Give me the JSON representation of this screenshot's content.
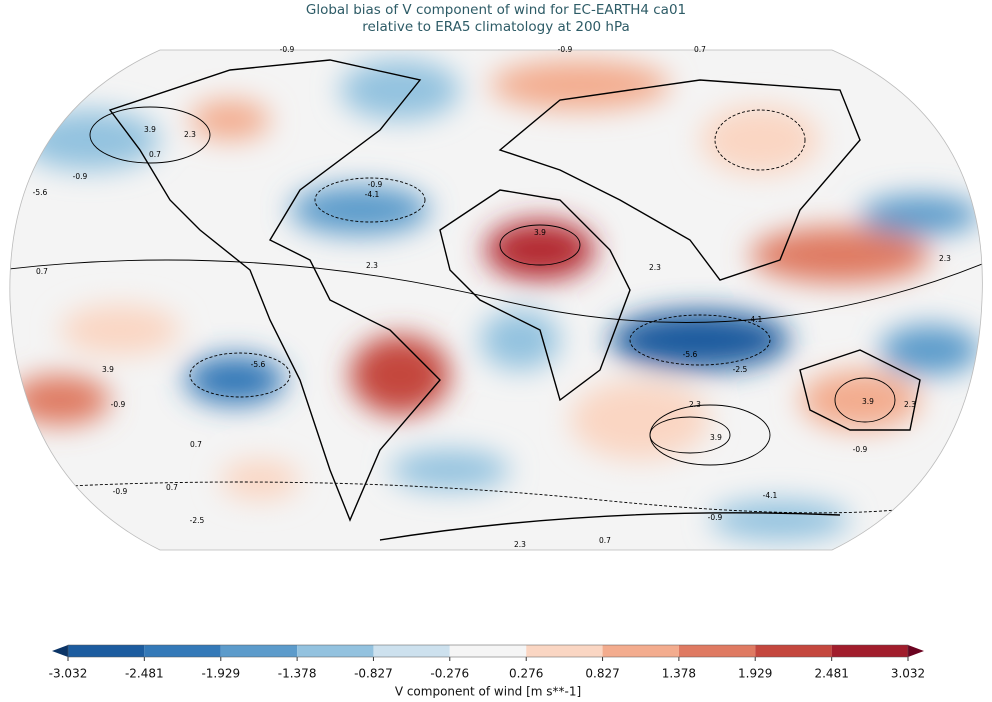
{
  "title": [
    "Global bias of V component of wind for EC-EARTH4 ca01",
    "relative to ERA5 climatology at 200 hPa"
  ],
  "colorbar": {
    "label": "V component of wind [m s**-1]",
    "ticks": [
      -3.032,
      -2.481,
      -1.929,
      -1.378,
      -0.827,
      -0.276,
      0.276,
      0.827,
      1.378,
      1.929,
      2.481,
      3.032
    ],
    "colors": [
      "#1c5c9f",
      "#3479b8",
      "#5c9bcb",
      "#93c2df",
      "#cde1ee",
      "#f5f5f5",
      "#fad6c3",
      "#f3ac8e",
      "#df7a62",
      "#c4473e",
      "#a11d2c"
    ],
    "extend_colors": [
      "#0b3466",
      "#6b0320"
    ]
  },
  "contour_labels": [
    -0.9,
    0.7,
    -0.9,
    3.9,
    2.3,
    0.7,
    -0.9,
    -5.6,
    -0.9,
    -4.1,
    3.9,
    2.3,
    -4.1,
    -5.6,
    -2.5,
    3.9,
    2.3,
    -0.9,
    3.9,
    2.3,
    0.7,
    -0.9,
    0.7,
    -2.5,
    2.3,
    0.7,
    -0.9,
    -4.1,
    0.7,
    2.3,
    -5.6,
    3.9,
    -0.9,
    2.3
  ]
}
